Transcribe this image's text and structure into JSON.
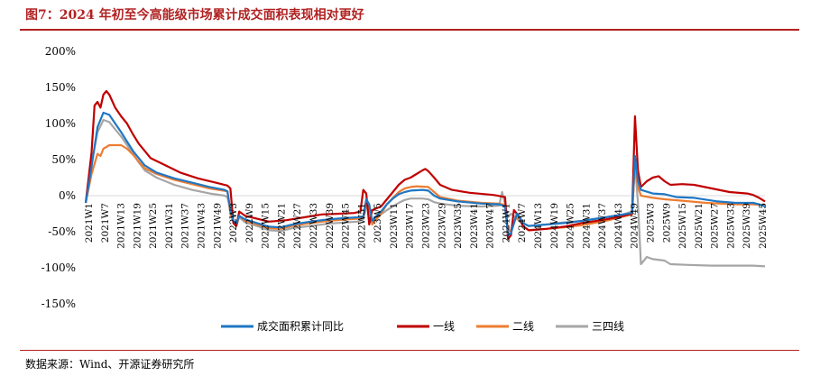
{
  "title": "图7：2024 年初至今高能级市场累计成交面积表现相对更好",
  "source": "数据来源：Wind、开源证券研究所",
  "chart_data": {
    "type": "line",
    "ylim": [
      -150,
      200
    ],
    "yticks": [
      200,
      150,
      100,
      50,
      0,
      -50,
      -100,
      -150
    ],
    "ytick_labels": [
      "200%",
      "150%",
      "100%",
      "50%",
      "0%",
      "-50%",
      "-100%",
      "-150%"
    ],
    "xtick_labels": [
      "2021W1",
      "2021W7",
      "2021W13",
      "2021W19",
      "2021W25",
      "2021W31",
      "2021W37",
      "2021W43",
      "2021W49",
      "2022W3",
      "2022W9",
      "2022W15",
      "2022W21",
      "2022W27",
      "2022W33",
      "2022W39",
      "2022W45",
      "2022W51",
      "2023W5",
      "2023W11",
      "2023W17",
      "2023W23",
      "2023W29",
      "2023W35",
      "2023W41",
      "2023W47",
      "2024W1",
      "2024W7",
      "2024W13",
      "2024W19",
      "2024W25",
      "2024W31",
      "2024W37",
      "2024W43",
      "2024W49",
      "2025W3",
      "2025W9",
      "2025W15",
      "2025W21",
      "2025W27",
      "2025W33",
      "2025W39",
      "2025W45"
    ],
    "grid": false,
    "legend_position": "bottom",
    "series": [
      {
        "name": "成交面积累计同比",
        "color": "#1f77c4",
        "points": [
          [
            0,
            -10
          ],
          [
            2,
            40
          ],
          [
            4,
            95
          ],
          [
            6,
            115
          ],
          [
            8,
            112
          ],
          [
            10,
            100
          ],
          [
            12,
            88
          ],
          [
            14,
            75
          ],
          [
            16,
            62
          ],
          [
            18,
            52
          ],
          [
            20,
            42
          ],
          [
            24,
            32
          ],
          [
            30,
            24
          ],
          [
            36,
            18
          ],
          [
            42,
            12
          ],
          [
            47,
            8
          ],
          [
            48,
            6
          ],
          [
            49,
            -20
          ],
          [
            50,
            -35
          ],
          [
            51,
            -38
          ],
          [
            52,
            -28
          ],
          [
            54,
            -33
          ],
          [
            58,
            -38
          ],
          [
            62,
            -43
          ],
          [
            66,
            -44
          ],
          [
            70,
            -40
          ],
          [
            76,
            -36
          ],
          [
            82,
            -33
          ],
          [
            88,
            -31
          ],
          [
            92,
            -30
          ],
          [
            94,
            -29
          ],
          [
            95,
            -5
          ],
          [
            96,
            -12
          ],
          [
            97,
            -35
          ],
          [
            98,
            -30
          ],
          [
            100,
            -22
          ],
          [
            102,
            -12
          ],
          [
            104,
            -4
          ],
          [
            106,
            2
          ],
          [
            108,
            5
          ],
          [
            110,
            7
          ],
          [
            114,
            8
          ],
          [
            116,
            7
          ],
          [
            118,
            0
          ],
          [
            120,
            -4
          ],
          [
            126,
            -8
          ],
          [
            134,
            -11
          ],
          [
            140,
            -12
          ],
          [
            142,
            -15
          ],
          [
            143,
            -55
          ],
          [
            144,
            -52
          ],
          [
            146,
            -25
          ],
          [
            147,
            -30
          ],
          [
            148,
            -38
          ],
          [
            150,
            -42
          ],
          [
            156,
            -40
          ],
          [
            162,
            -38
          ],
          [
            168,
            -35
          ],
          [
            176,
            -30
          ],
          [
            182,
            -26
          ],
          [
            185,
            -24
          ],
          [
            186,
            55
          ],
          [
            187,
            20
          ],
          [
            188,
            8
          ],
          [
            192,
            3
          ],
          [
            196,
            2
          ],
          [
            200,
            -2
          ],
          [
            206,
            -3
          ],
          [
            214,
            -8
          ],
          [
            220,
            -10
          ],
          [
            226,
            -10
          ],
          [
            228,
            -12
          ],
          [
            230,
            -15
          ]
        ]
      },
      {
        "name": "一线",
        "color": "#c00000",
        "points": [
          [
            0,
            -10
          ],
          [
            2,
            60
          ],
          [
            3,
            125
          ],
          [
            4,
            130
          ],
          [
            5,
            122
          ],
          [
            6,
            140
          ],
          [
            7,
            145
          ],
          [
            8,
            140
          ],
          [
            10,
            122
          ],
          [
            12,
            110
          ],
          [
            14,
            100
          ],
          [
            16,
            85
          ],
          [
            18,
            72
          ],
          [
            20,
            62
          ],
          [
            22,
            52
          ],
          [
            26,
            44
          ],
          [
            32,
            32
          ],
          [
            38,
            24
          ],
          [
            44,
            18
          ],
          [
            48,
            14
          ],
          [
            49,
            10
          ],
          [
            50,
            -38
          ],
          [
            51,
            -42
          ],
          [
            52,
            -22
          ],
          [
            54,
            -28
          ],
          [
            58,
            -32
          ],
          [
            62,
            -36
          ],
          [
            68,
            -34
          ],
          [
            74,
            -30
          ],
          [
            80,
            -26
          ],
          [
            86,
            -25
          ],
          [
            91,
            -24
          ],
          [
            93,
            -22
          ],
          [
            94,
            8
          ],
          [
            95,
            3
          ],
          [
            96,
            -40
          ],
          [
            97,
            -20
          ],
          [
            100,
            -15
          ],
          [
            102,
            -5
          ],
          [
            104,
            5
          ],
          [
            106,
            15
          ],
          [
            108,
            22
          ],
          [
            110,
            25
          ],
          [
            112,
            30
          ],
          [
            114,
            35
          ],
          [
            115,
            37
          ],
          [
            116,
            34
          ],
          [
            118,
            25
          ],
          [
            120,
            15
          ],
          [
            124,
            8
          ],
          [
            130,
            4
          ],
          [
            138,
            1
          ],
          [
            142,
            -2
          ],
          [
            143,
            -60
          ],
          [
            144,
            -55
          ],
          [
            145,
            -20
          ],
          [
            146,
            -25
          ],
          [
            147,
            -30
          ],
          [
            148,
            -42
          ],
          [
            150,
            -48
          ],
          [
            156,
            -46
          ],
          [
            162,
            -43
          ],
          [
            168,
            -38
          ],
          [
            176,
            -33
          ],
          [
            182,
            -28
          ],
          [
            185,
            -25
          ],
          [
            186,
            110
          ],
          [
            187,
            35
          ],
          [
            188,
            12
          ],
          [
            190,
            20
          ],
          [
            192,
            25
          ],
          [
            194,
            27
          ],
          [
            196,
            20
          ],
          [
            198,
            15
          ],
          [
            202,
            16
          ],
          [
            206,
            15
          ],
          [
            212,
            10
          ],
          [
            218,
            5
          ],
          [
            224,
            3
          ],
          [
            226,
            1
          ],
          [
            228,
            -3
          ],
          [
            230,
            -8
          ]
        ]
      },
      {
        "name": "二线",
        "color": "#ed7d31",
        "points": [
          [
            0,
            -10
          ],
          [
            2,
            30
          ],
          [
            4,
            58
          ],
          [
            5,
            55
          ],
          [
            6,
            65
          ],
          [
            8,
            70
          ],
          [
            12,
            70
          ],
          [
            14,
            65
          ],
          [
            16,
            57
          ],
          [
            18,
            47
          ],
          [
            20,
            38
          ],
          [
            24,
            30
          ],
          [
            30,
            22
          ],
          [
            36,
            16
          ],
          [
            42,
            10
          ],
          [
            48,
            6
          ],
          [
            49,
            -25
          ],
          [
            50,
            -36
          ],
          [
            51,
            -40
          ],
          [
            52,
            -28
          ],
          [
            54,
            -35
          ],
          [
            58,
            -40
          ],
          [
            62,
            -45
          ],
          [
            66,
            -46
          ],
          [
            70,
            -42
          ],
          [
            76,
            -38
          ],
          [
            82,
            -35
          ],
          [
            88,
            -33
          ],
          [
            92,
            -32
          ],
          [
            94,
            -30
          ],
          [
            95,
            -10
          ],
          [
            96,
            -18
          ],
          [
            97,
            -40
          ],
          [
            98,
            -35
          ],
          [
            100,
            -25
          ],
          [
            102,
            -12
          ],
          [
            104,
            -3
          ],
          [
            106,
            5
          ],
          [
            108,
            10
          ],
          [
            110,
            12
          ],
          [
            112,
            13
          ],
          [
            116,
            12
          ],
          [
            118,
            5
          ],
          [
            120,
            -2
          ],
          [
            126,
            -7
          ],
          [
            134,
            -10
          ],
          [
            140,
            -11
          ],
          [
            142,
            -13
          ],
          [
            143,
            -50
          ],
          [
            144,
            -48
          ],
          [
            146,
            -28
          ],
          [
            147,
            -33
          ],
          [
            148,
            -42
          ],
          [
            150,
            -48
          ],
          [
            156,
            -46
          ],
          [
            162,
            -44
          ],
          [
            168,
            -41
          ],
          [
            176,
            -35
          ],
          [
            182,
            -29
          ],
          [
            185,
            -26
          ],
          [
            186,
            45
          ],
          [
            187,
            12
          ],
          [
            188,
            0
          ],
          [
            192,
            -3
          ],
          [
            196,
            -5
          ],
          [
            202,
            -7
          ],
          [
            210,
            -10
          ],
          [
            220,
            -12
          ],
          [
            226,
            -12
          ],
          [
            230,
            -13
          ]
        ]
      },
      {
        "name": "三四线",
        "color": "#a6a6a6",
        "points": [
          [
            0,
            -10
          ],
          [
            2,
            45
          ],
          [
            4,
            88
          ],
          [
            6,
            105
          ],
          [
            8,
            102
          ],
          [
            10,
            92
          ],
          [
            12,
            82
          ],
          [
            14,
            70
          ],
          [
            16,
            58
          ],
          [
            18,
            46
          ],
          [
            20,
            35
          ],
          [
            24,
            25
          ],
          [
            30,
            15
          ],
          [
            36,
            8
          ],
          [
            42,
            3
          ],
          [
            47,
            0
          ],
          [
            48,
            -2
          ],
          [
            49,
            -20
          ],
          [
            50,
            -38
          ],
          [
            51,
            -42
          ],
          [
            52,
            -30
          ],
          [
            54,
            -37
          ],
          [
            58,
            -42
          ],
          [
            62,
            -48
          ],
          [
            66,
            -49
          ],
          [
            70,
            -45
          ],
          [
            76,
            -42
          ],
          [
            82,
            -39
          ],
          [
            88,
            -37
          ],
          [
            92,
            -36
          ],
          [
            94,
            -33
          ],
          [
            95,
            -15
          ],
          [
            96,
            -20
          ],
          [
            97,
            -38
          ],
          [
            98,
            -33
          ],
          [
            100,
            -26
          ],
          [
            102,
            -20
          ],
          [
            104,
            -15
          ],
          [
            106,
            -10
          ],
          [
            108,
            -6
          ],
          [
            110,
            -4
          ],
          [
            114,
            -4
          ],
          [
            116,
            -5
          ],
          [
            118,
            -9
          ],
          [
            120,
            -11
          ],
          [
            126,
            -14
          ],
          [
            134,
            -15
          ],
          [
            140,
            -14
          ],
          [
            141,
            5
          ],
          [
            142,
            -12
          ],
          [
            143,
            -30
          ],
          [
            144,
            -25
          ],
          [
            146,
            -32
          ],
          [
            147,
            -35
          ],
          [
            148,
            -38
          ],
          [
            150,
            -42
          ],
          [
            156,
            -40
          ],
          [
            162,
            -37
          ],
          [
            168,
            -35
          ],
          [
            176,
            -30
          ],
          [
            182,
            -26
          ],
          [
            185,
            -22
          ],
          [
            186,
            45
          ],
          [
            187,
            -10
          ],
          [
            188,
            -95
          ],
          [
            190,
            -85
          ],
          [
            192,
            -88
          ],
          [
            196,
            -90
          ],
          [
            198,
            -95
          ],
          [
            204,
            -96
          ],
          [
            212,
            -97
          ],
          [
            220,
            -97
          ],
          [
            226,
            -97
          ],
          [
            230,
            -98
          ]
        ]
      }
    ]
  }
}
